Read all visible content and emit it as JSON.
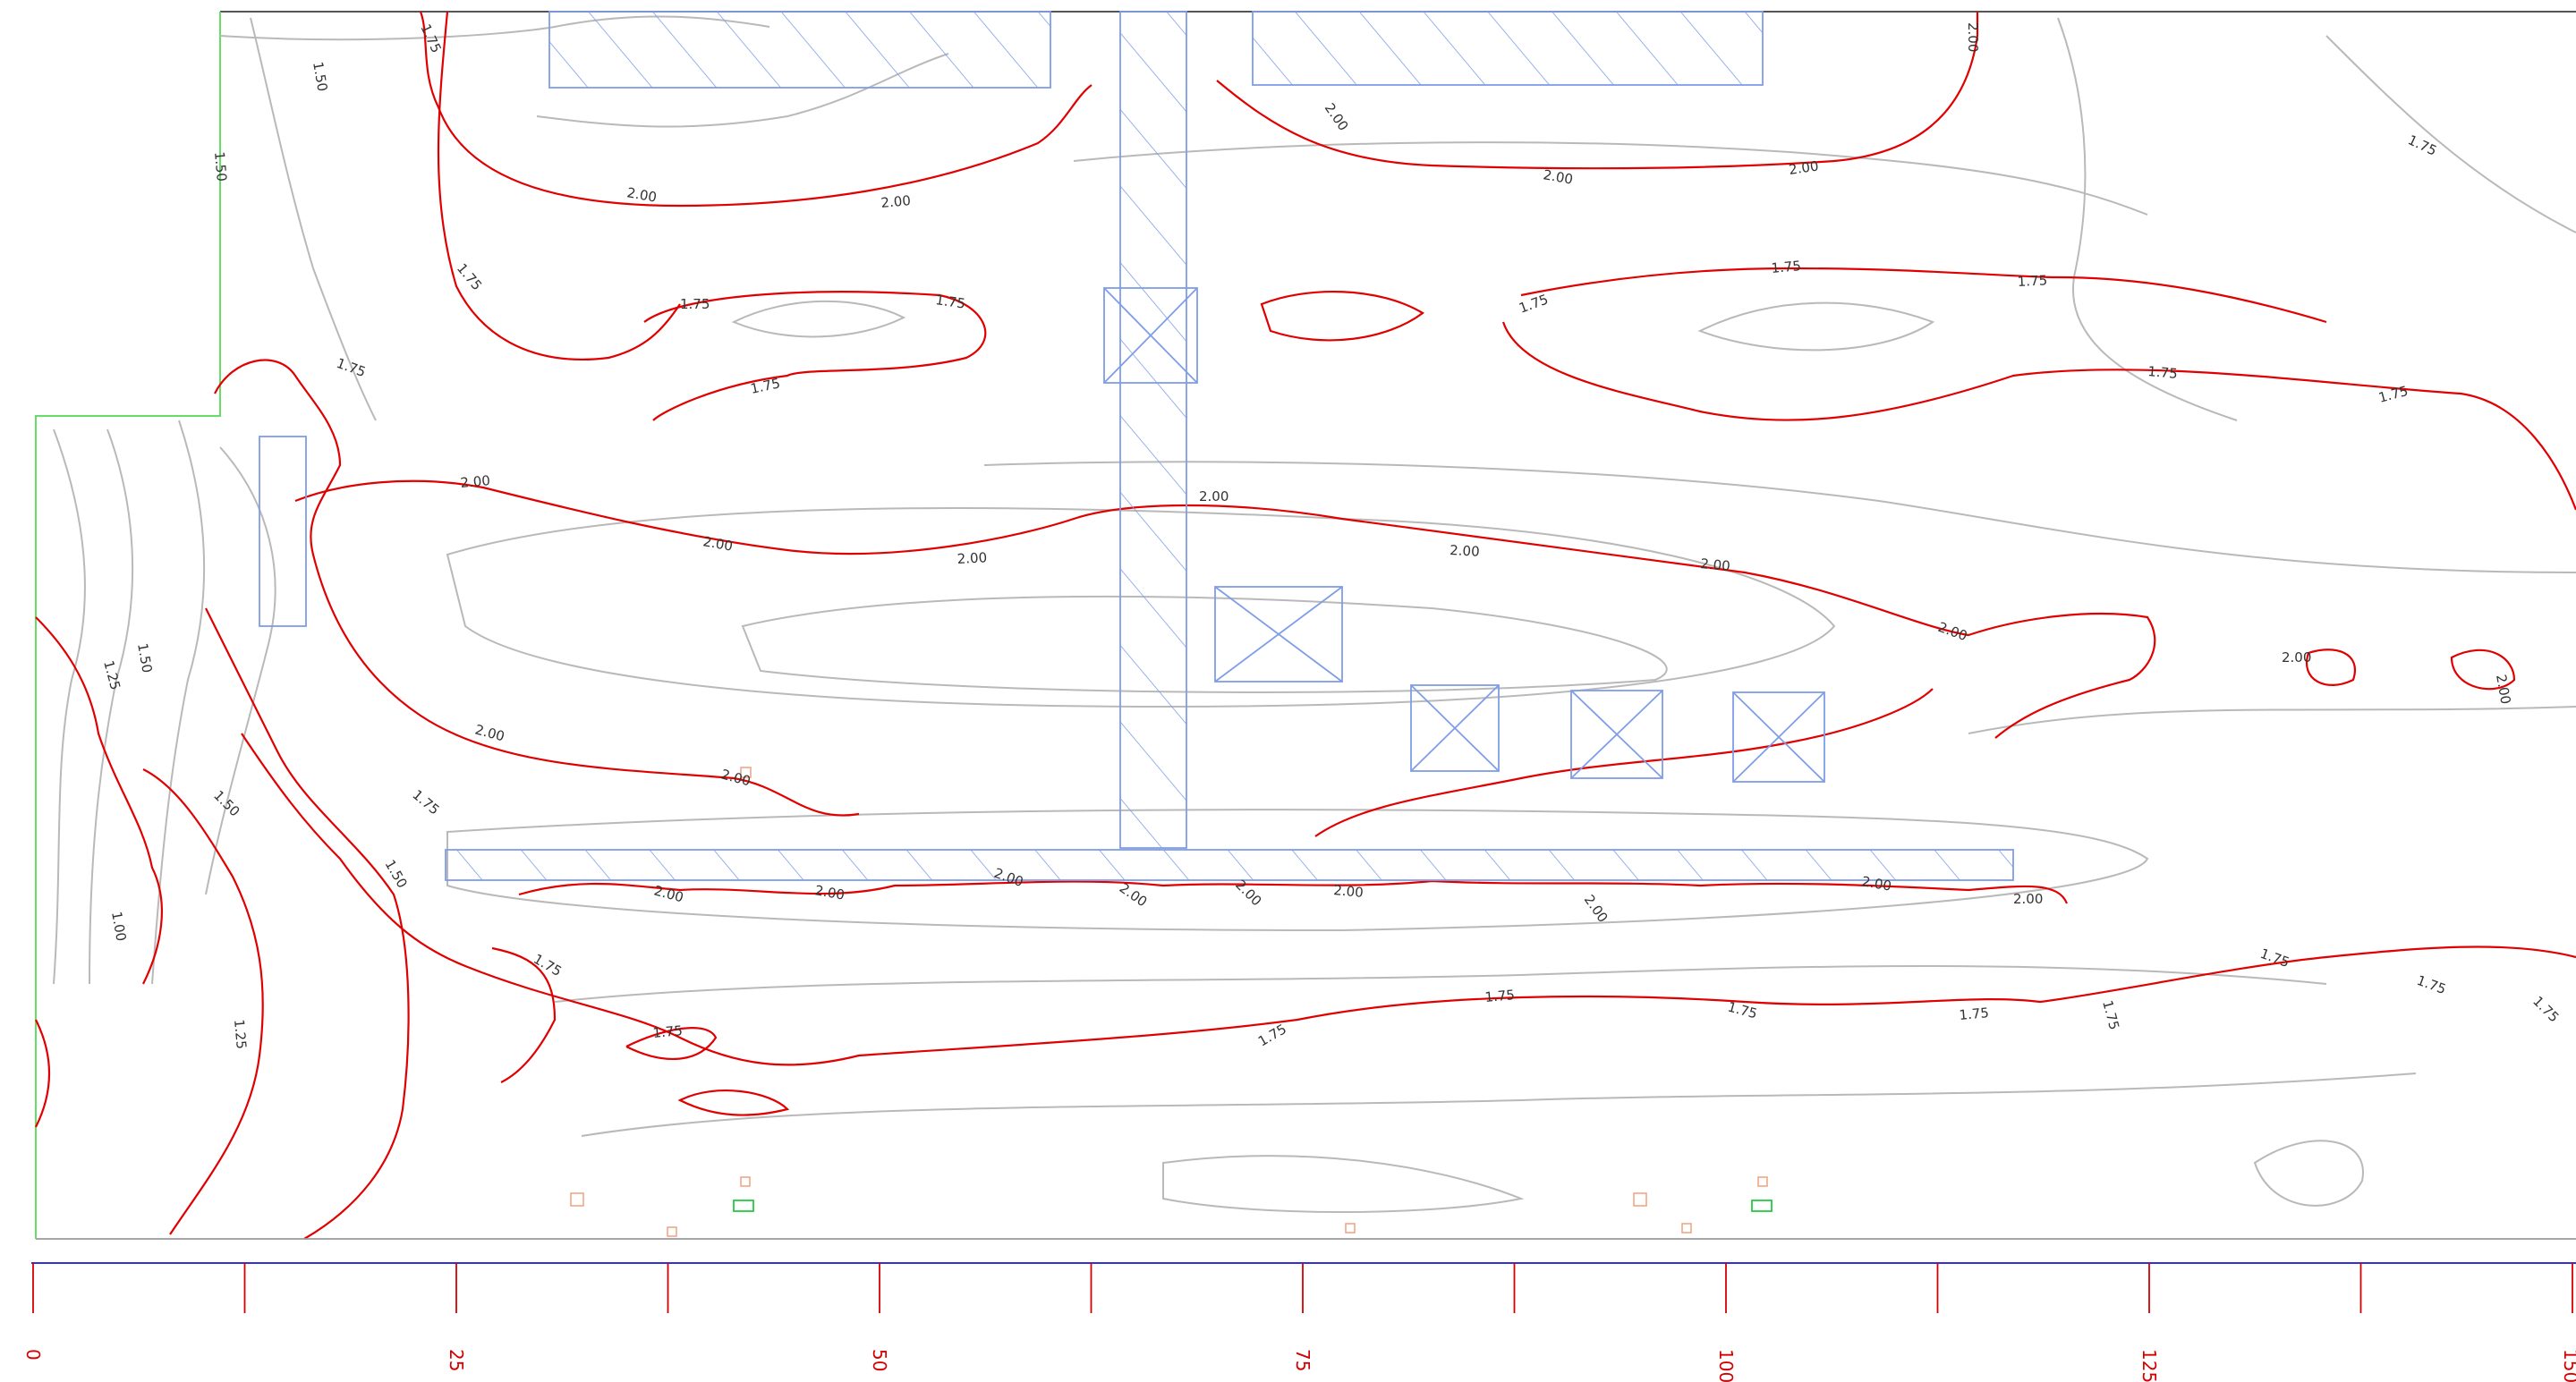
{
  "colors": {
    "background": "#ffffff",
    "contour_minor": "#b9b9b9",
    "contour_major": "#e10000",
    "structure": "#7f9de8",
    "boundary": "#66dd66",
    "baseline_axis": "#3030e0",
    "axis_ticks": "#d40000",
    "marker_orange": "#f0a080",
    "marker_green": "#22cc44"
  },
  "contour_labels": [
    "1.75",
    "1.50",
    "1.50",
    "1.75",
    "1.75",
    "2.00",
    "2.00",
    "1.75",
    "1.75",
    "1.75",
    "2.00",
    "2.00",
    "1.75",
    "1.75",
    "2.00",
    "2.00",
    "2.00",
    "1.75",
    "1.75",
    "1.75",
    "2.00",
    "2.00",
    "2.00",
    "2.00",
    "2.00",
    "2.00",
    "2.00",
    "2.00",
    "2.00",
    "2.00",
    "1.75",
    "1.75",
    "1.75",
    "1.75",
    "1.75",
    "1.75",
    "1.50",
    "1.25",
    "1.00",
    "1.50",
    "1.25",
    "1.50",
    "2.00",
    "2.00",
    "2.00",
    "2.00",
    "2.00",
    "2.00",
    "2.00",
    "2.00",
    "2.00",
    "1.75",
    "1.75",
    "1.75",
    "1.75",
    "1.75",
    "1.75"
  ],
  "axis": {
    "tick_labels": [
      "0",
      "25",
      "50",
      "75",
      "100",
      "125",
      "150"
    ]
  }
}
